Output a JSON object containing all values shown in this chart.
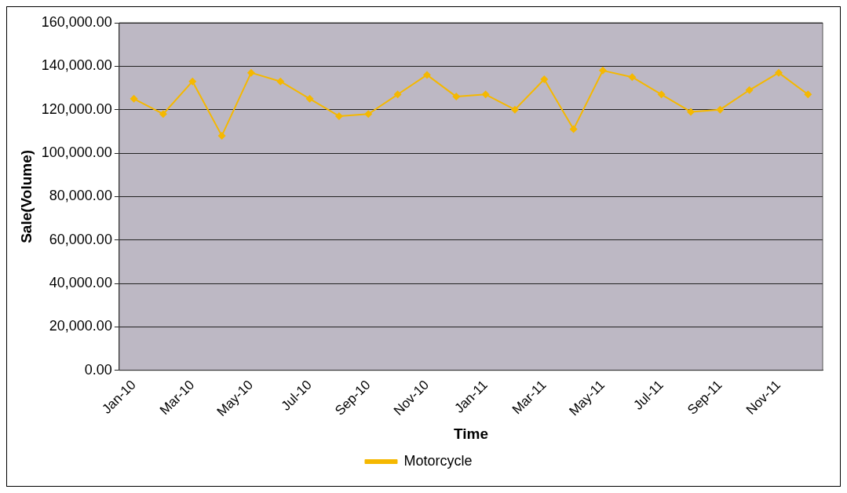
{
  "chart_data": {
    "type": "line",
    "xlabel": "Time",
    "ylabel": "Sale(Volume)",
    "categories": [
      "Jan-10",
      null,
      "Mar-10",
      null,
      "May-10",
      null,
      "Jul-10",
      null,
      "Sep-10",
      null,
      "Nov-10",
      null,
      "Jan-11",
      null,
      "Mar-11",
      null,
      "May-11",
      null,
      "Jul-11",
      null,
      "Sep-11",
      null,
      "Nov-11",
      null
    ],
    "series": [
      {
        "name": "Motorcycle",
        "color": "#f5b800",
        "values": [
          125000,
          118000,
          133000,
          108000,
          137000,
          133000,
          125000,
          117000,
          118000,
          127000,
          136000,
          126000,
          127000,
          120000,
          134000,
          111000,
          138000,
          135000,
          127000,
          119000,
          120000,
          129000,
          137000,
          127000
        ]
      }
    ],
    "ylim": [
      0,
      160000
    ],
    "yticks": [
      {
        "value": 0,
        "label": "0.00"
      },
      {
        "value": 20000,
        "label": "20,000.00"
      },
      {
        "value": 40000,
        "label": "40,000.00"
      },
      {
        "value": 60000,
        "label": "60,000.00"
      },
      {
        "value": 80000,
        "label": "80,000.00"
      },
      {
        "value": 100000,
        "label": "100,000.00"
      },
      {
        "value": 120000,
        "label": "120,000.00"
      },
      {
        "value": 140000,
        "label": "140,000.00"
      },
      {
        "value": 160000,
        "label": "160,000.00"
      }
    ],
    "grid": "y",
    "legend": "bottom",
    "marker": "diamond",
    "line_style": "solid"
  }
}
